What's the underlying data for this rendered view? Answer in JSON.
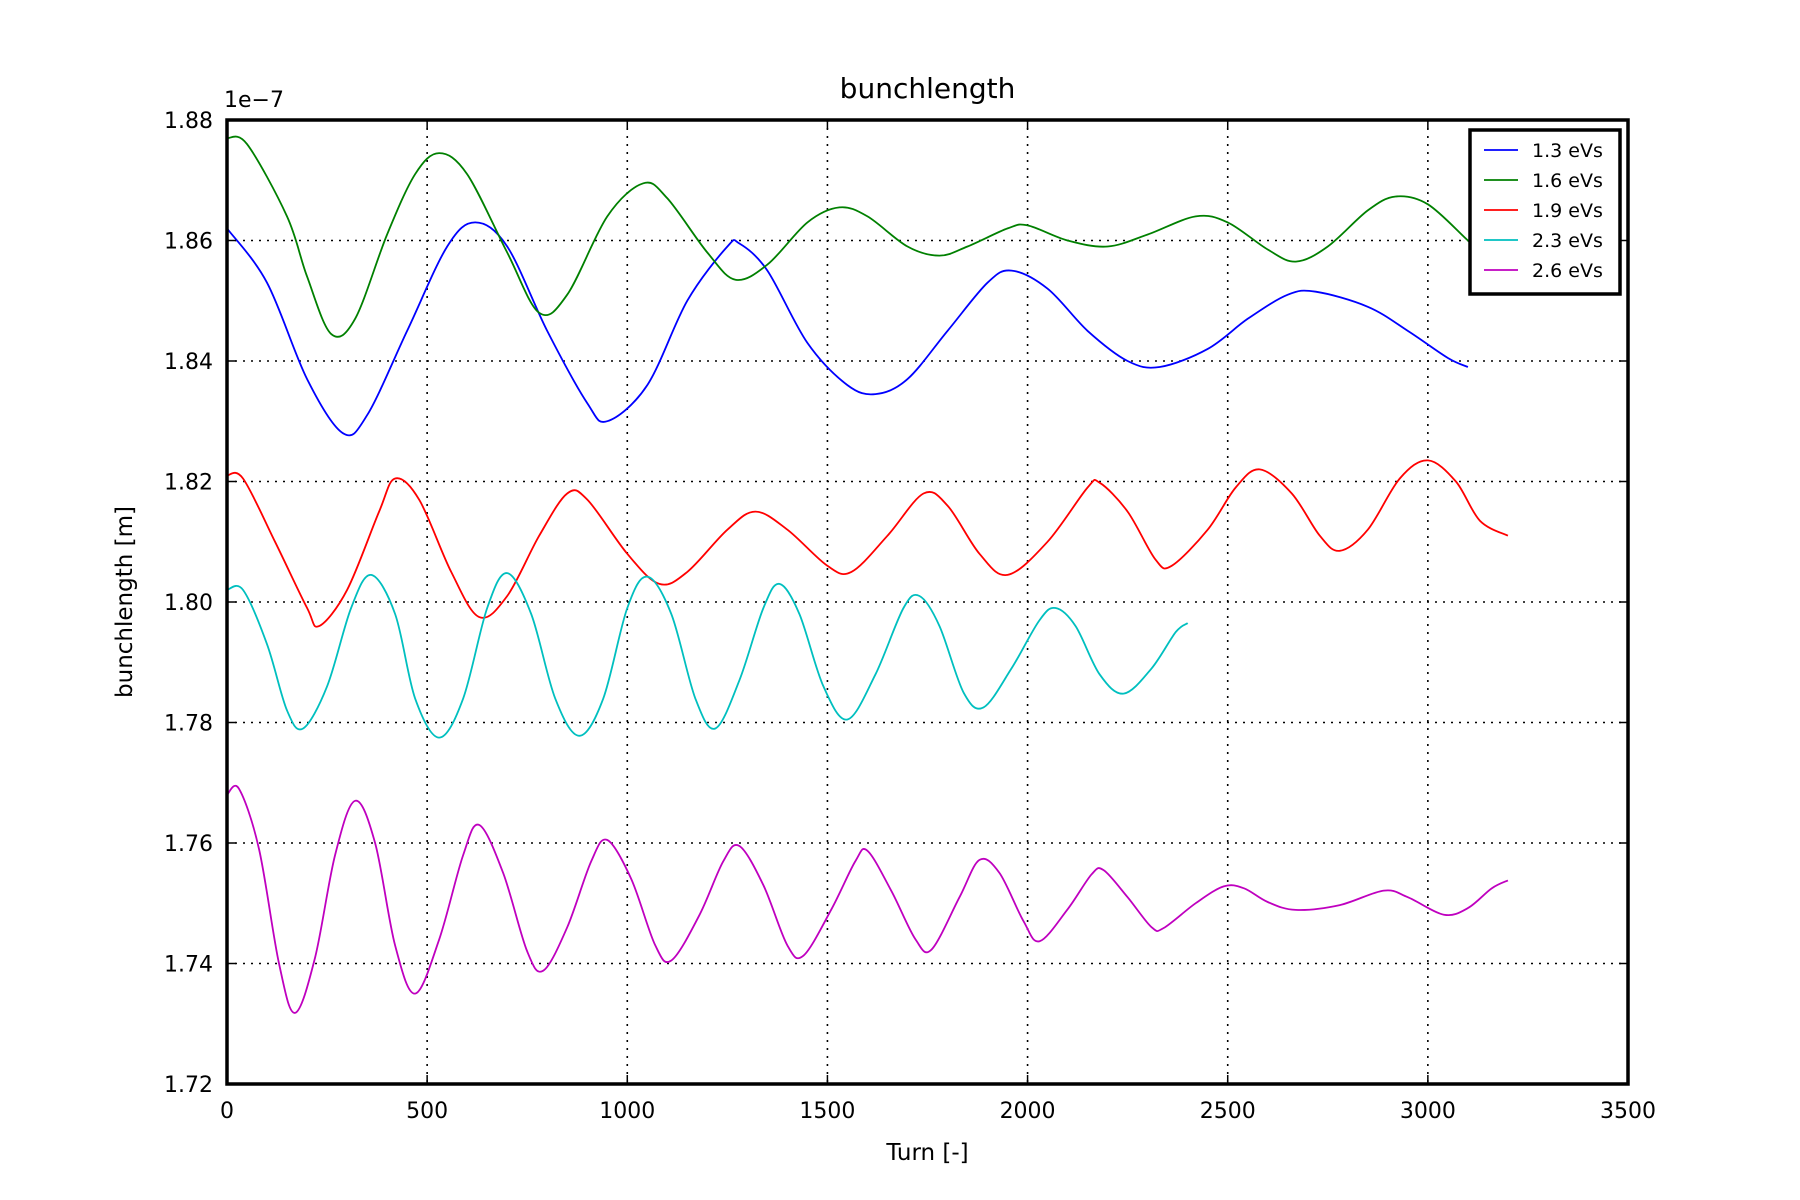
{
  "chart_data": {
    "type": "line",
    "title": "bunchlength",
    "xlabel": "Turn [-]",
    "ylabel": "bunchlength [m]",
    "offset_text": "1e−7",
    "xlim": [
      0,
      3500
    ],
    "ylim": [
      1.72,
      1.88
    ],
    "xticks": [
      0,
      500,
      1000,
      1500,
      2000,
      2500,
      3000,
      3500
    ],
    "xtick_labels": [
      "0",
      "500",
      "1000",
      "1500",
      "2000",
      "2500",
      "3000",
      "3500"
    ],
    "yticks": [
      1.72,
      1.74,
      1.76,
      1.78,
      1.8,
      1.82,
      1.84,
      1.86,
      1.88
    ],
    "ytick_labels": [
      "1.72",
      "1.74",
      "1.76",
      "1.78",
      "1.80",
      "1.82",
      "1.84",
      "1.86",
      "1.88"
    ],
    "grid": true,
    "legend_position": "top-right",
    "series": [
      {
        "name": "1.3 eVs",
        "color": "#0000ff",
        "points": [
          [
            0,
            1.862
          ],
          [
            100,
            1.853
          ],
          [
            200,
            1.837
          ],
          [
            290,
            1.828
          ],
          [
            350,
            1.831
          ],
          [
            450,
            1.845
          ],
          [
            550,
            1.859
          ],
          [
            620,
            1.863
          ],
          [
            700,
            1.859
          ],
          [
            800,
            1.845
          ],
          [
            900,
            1.833
          ],
          [
            950,
            1.83
          ],
          [
            1050,
            1.836
          ],
          [
            1150,
            1.85
          ],
          [
            1250,
            1.859
          ],
          [
            1280,
            1.8595
          ],
          [
            1350,
            1.855
          ],
          [
            1450,
            1.843
          ],
          [
            1550,
            1.836
          ],
          [
            1620,
            1.8345
          ],
          [
            1700,
            1.837
          ],
          [
            1800,
            1.845
          ],
          [
            1900,
            1.853
          ],
          [
            1960,
            1.855
          ],
          [
            2050,
            1.852
          ],
          [
            2150,
            1.845
          ],
          [
            2250,
            1.84
          ],
          [
            2330,
            1.839
          ],
          [
            2450,
            1.842
          ],
          [
            2550,
            1.847
          ],
          [
            2650,
            1.851
          ],
          [
            2720,
            1.8515
          ],
          [
            2850,
            1.849
          ],
          [
            2950,
            1.845
          ],
          [
            3050,
            1.8405
          ],
          [
            3100,
            1.839
          ]
        ]
      },
      {
        "name": "1.6 eVs",
        "color": "#008000",
        "points": [
          [
            0,
            1.877
          ],
          [
            50,
            1.876
          ],
          [
            150,
            1.864
          ],
          [
            200,
            1.854
          ],
          [
            260,
            1.8445
          ],
          [
            320,
            1.847
          ],
          [
            400,
            1.861
          ],
          [
            470,
            1.871
          ],
          [
            530,
            1.8745
          ],
          [
            600,
            1.871
          ],
          [
            700,
            1.858
          ],
          [
            780,
            1.848
          ],
          [
            850,
            1.851
          ],
          [
            950,
            1.864
          ],
          [
            1040,
            1.8695
          ],
          [
            1100,
            1.867
          ],
          [
            1200,
            1.858
          ],
          [
            1270,
            1.8535
          ],
          [
            1350,
            1.856
          ],
          [
            1450,
            1.863
          ],
          [
            1530,
            1.8655
          ],
          [
            1600,
            1.864
          ],
          [
            1700,
            1.859
          ],
          [
            1780,
            1.8575
          ],
          [
            1850,
            1.859
          ],
          [
            1950,
            1.862
          ],
          [
            2000,
            1.8625
          ],
          [
            2100,
            1.86
          ],
          [
            2200,
            1.859
          ],
          [
            2300,
            1.861
          ],
          [
            2420,
            1.864
          ],
          [
            2500,
            1.863
          ],
          [
            2600,
            1.8585
          ],
          [
            2670,
            1.8565
          ],
          [
            2750,
            1.859
          ],
          [
            2850,
            1.865
          ],
          [
            2920,
            1.8673
          ],
          [
            3000,
            1.866
          ],
          [
            3100,
            1.86
          ],
          [
            3150,
            1.857
          ]
        ]
      },
      {
        "name": "1.9 eVs",
        "color": "#ff0000",
        "points": [
          [
            0,
            1.821
          ],
          [
            40,
            1.8205
          ],
          [
            120,
            1.81
          ],
          [
            200,
            1.799
          ],
          [
            230,
            1.796
          ],
          [
            300,
            1.802
          ],
          [
            380,
            1.815
          ],
          [
            420,
            1.8205
          ],
          [
            480,
            1.817
          ],
          [
            560,
            1.805
          ],
          [
            630,
            1.7975
          ],
          [
            700,
            1.801
          ],
          [
            780,
            1.811
          ],
          [
            850,
            1.818
          ],
          [
            900,
            1.817
          ],
          [
            1000,
            1.808
          ],
          [
            1080,
            1.803
          ],
          [
            1150,
            1.805
          ],
          [
            1250,
            1.812
          ],
          [
            1320,
            1.815
          ],
          [
            1400,
            1.812
          ],
          [
            1500,
            1.806
          ],
          [
            1560,
            1.805
          ],
          [
            1650,
            1.811
          ],
          [
            1740,
            1.818
          ],
          [
            1800,
            1.816
          ],
          [
            1880,
            1.808
          ],
          [
            1950,
            1.8045
          ],
          [
            2050,
            1.81
          ],
          [
            2150,
            1.819
          ],
          [
            2180,
            1.8198
          ],
          [
            2250,
            1.815
          ],
          [
            2320,
            1.807
          ],
          [
            2360,
            1.806
          ],
          [
            2450,
            1.812
          ],
          [
            2520,
            1.819
          ],
          [
            2580,
            1.822
          ],
          [
            2660,
            1.818
          ],
          [
            2730,
            1.811
          ],
          [
            2780,
            1.8085
          ],
          [
            2850,
            1.812
          ],
          [
            2930,
            1.8205
          ],
          [
            3000,
            1.8235
          ],
          [
            3070,
            1.82
          ],
          [
            3130,
            1.8135
          ],
          [
            3200,
            1.811
          ]
        ]
      },
      {
        "name": "2.3 eVs",
        "color": "#00bfbf",
        "points": [
          [
            0,
            1.802
          ],
          [
            40,
            1.802
          ],
          [
            100,
            1.793
          ],
          [
            150,
            1.782
          ],
          [
            190,
            1.779
          ],
          [
            250,
            1.786
          ],
          [
            310,
            1.799
          ],
          [
            360,
            1.8045
          ],
          [
            420,
            1.798
          ],
          [
            470,
            1.784
          ],
          [
            530,
            1.7775
          ],
          [
            590,
            1.784
          ],
          [
            650,
            1.799
          ],
          [
            700,
            1.8048
          ],
          [
            760,
            1.798
          ],
          [
            820,
            1.784
          ],
          [
            880,
            1.7778
          ],
          [
            940,
            1.784
          ],
          [
            1000,
            1.799
          ],
          [
            1050,
            1.8042
          ],
          [
            1110,
            1.798
          ],
          [
            1170,
            1.784
          ],
          [
            1220,
            1.779
          ],
          [
            1280,
            1.787
          ],
          [
            1340,
            1.799
          ],
          [
            1380,
            1.803
          ],
          [
            1430,
            1.798
          ],
          [
            1490,
            1.786
          ],
          [
            1550,
            1.7805
          ],
          [
            1620,
            1.788
          ],
          [
            1690,
            1.799
          ],
          [
            1730,
            1.801
          ],
          [
            1780,
            1.796
          ],
          [
            1840,
            1.785
          ],
          [
            1890,
            1.7825
          ],
          [
            1960,
            1.789
          ],
          [
            2030,
            1.797
          ],
          [
            2070,
            1.799
          ],
          [
            2120,
            1.796
          ],
          [
            2180,
            1.788
          ],
          [
            2240,
            1.7848
          ],
          [
            2310,
            1.789
          ],
          [
            2370,
            1.795
          ],
          [
            2400,
            1.7965
          ]
        ]
      },
      {
        "name": "2.6 eVs",
        "color": "#bf00bf",
        "points": [
          [
            0,
            1.768
          ],
          [
            30,
            1.769
          ],
          [
            80,
            1.759
          ],
          [
            130,
            1.74
          ],
          [
            170,
            1.7318
          ],
          [
            220,
            1.741
          ],
          [
            270,
            1.758
          ],
          [
            320,
            1.767
          ],
          [
            370,
            1.76
          ],
          [
            420,
            1.743
          ],
          [
            470,
            1.735
          ],
          [
            530,
            1.744
          ],
          [
            590,
            1.758
          ],
          [
            630,
            1.763
          ],
          [
            690,
            1.755
          ],
          [
            750,
            1.742
          ],
          [
            790,
            1.7388
          ],
          [
            850,
            1.746
          ],
          [
            910,
            1.757
          ],
          [
            950,
            1.7605
          ],
          [
            1010,
            1.754
          ],
          [
            1070,
            1.743
          ],
          [
            1110,
            1.7405
          ],
          [
            1180,
            1.748
          ],
          [
            1240,
            1.757
          ],
          [
            1280,
            1.7595
          ],
          [
            1340,
            1.753
          ],
          [
            1400,
            1.743
          ],
          [
            1440,
            1.7413
          ],
          [
            1510,
            1.749
          ],
          [
            1570,
            1.757
          ],
          [
            1600,
            1.7587
          ],
          [
            1660,
            1.752
          ],
          [
            1720,
            1.744
          ],
          [
            1760,
            1.7423
          ],
          [
            1830,
            1.751
          ],
          [
            1880,
            1.7572
          ],
          [
            1930,
            1.755
          ],
          [
            1990,
            1.747
          ],
          [
            2030,
            1.7437
          ],
          [
            2100,
            1.749
          ],
          [
            2160,
            1.7548
          ],
          [
            2190,
            1.7555
          ],
          [
            2250,
            1.751
          ],
          [
            2310,
            1.746
          ],
          [
            2340,
            1.7459
          ],
          [
            2420,
            1.75
          ],
          [
            2490,
            1.7528
          ],
          [
            2540,
            1.7525
          ],
          [
            2600,
            1.7502
          ],
          [
            2670,
            1.7489
          ],
          [
            2780,
            1.7497
          ],
          [
            2890,
            1.7521
          ],
          [
            2950,
            1.751
          ],
          [
            3040,
            1.7481
          ],
          [
            3100,
            1.7492
          ],
          [
            3160,
            1.7525
          ],
          [
            3200,
            1.7538
          ]
        ]
      }
    ]
  }
}
